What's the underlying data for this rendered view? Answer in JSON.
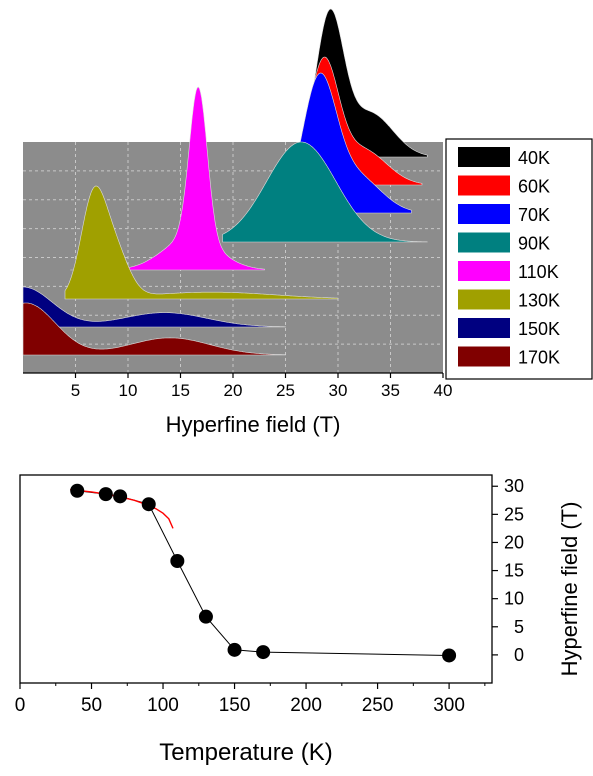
{
  "chart_data": [
    {
      "type": "area",
      "xlabel": "Hyperfine field (T)",
      "xlim": [
        0,
        40
      ],
      "xticks": [
        5,
        10,
        15,
        20,
        25,
        30,
        35,
        40
      ],
      "plot_background": "#8c8c8c",
      "grid": true,
      "legend": "right",
      "series": [
        {
          "name": "40K",
          "color": "#000000",
          "peaks": [
            {
              "center": 29.2,
              "width": 1.3,
              "height": 1.0
            },
            {
              "center": 33.0,
              "width": 2.2,
              "height": 0.32
            }
          ],
          "xmin": 27.0,
          "xmax": 38.5
        },
        {
          "name": "60K",
          "color": "#ff0000",
          "peaks": [
            {
              "center": 28.6,
              "width": 1.4,
              "height": 1.0
            },
            {
              "center": 32.3,
              "width": 2.3,
              "height": 0.3
            }
          ],
          "xmin": 26.3,
          "xmax": 38.0
        },
        {
          "name": "70K",
          "color": "#0000ff",
          "peaks": [
            {
              "center": 28.2,
              "width": 1.6,
              "height": 1.0
            },
            {
              "center": 31.8,
              "width": 2.3,
              "height": 0.28
            }
          ],
          "xmin": 25.5,
          "xmax": 37.0
        },
        {
          "name": "90K",
          "color": "#008080",
          "peaks": [
            {
              "center": 26.5,
              "width": 3.3,
              "height": 1.0
            }
          ],
          "xmin": 19.0,
          "xmax": 38.5
        },
        {
          "name": "110K",
          "color": "#ff00ff",
          "peaks": [
            {
              "center": 16.7,
              "width": 0.85,
              "height": 1.0
            },
            {
              "center": 16.0,
              "width": 2.6,
              "height": 0.22
            }
          ],
          "xmin": 4.5,
          "xmax": 23.0
        },
        {
          "name": "130K",
          "color": "#a0a000",
          "peaks": [
            {
              "center": 6.7,
              "width": 1.2,
              "height": 1.0
            },
            {
              "center": 8.8,
              "width": 1.3,
              "height": 0.45
            },
            {
              "center": 18.0,
              "width": 6.0,
              "height": 0.07
            }
          ],
          "xmin": 4.0,
          "xmax": 30.0
        },
        {
          "name": "150K",
          "color": "#000080",
          "peaks": [
            {
              "center": 0.0,
              "width": 2.8,
              "height": 1.0
            },
            {
              "center": 13.5,
              "width": 4.0,
              "height": 0.36
            }
          ],
          "xmin": 0.0,
          "xmax": 25.0
        },
        {
          "name": "170K",
          "color": "#800000",
          "peaks": [
            {
              "center": 0.3,
              "width": 2.8,
              "height": 1.0
            },
            {
              "center": 14.0,
              "width": 3.8,
              "height": 0.33
            }
          ],
          "xmin": 0.0,
          "xmax": 25.0
        }
      ]
    },
    {
      "type": "scatter",
      "xlabel": "Temperature (K)",
      "ylabel": "Hyperfine field (T)",
      "xlim": [
        0,
        330
      ],
      "ylim": [
        -5,
        32
      ],
      "xticks": [
        0,
        50,
        100,
        150,
        200,
        250,
        300
      ],
      "yticks": [
        0,
        5,
        10,
        15,
        20,
        25,
        30
      ],
      "points": [
        {
          "x": 40,
          "y": 29.2
        },
        {
          "x": 60,
          "y": 28.6
        },
        {
          "x": 70,
          "y": 28.2
        },
        {
          "x": 90,
          "y": 26.8
        },
        {
          "x": 110,
          "y": 16.7
        },
        {
          "x": 130,
          "y": 6.8
        },
        {
          "x": 150,
          "y": 0.9
        },
        {
          "x": 170,
          "y": 0.5
        },
        {
          "x": 300,
          "y": -0.1
        }
      ],
      "fit_line": {
        "color": "#ff0000",
        "x": [
          35,
          50,
          60,
          70,
          80,
          90,
          95,
          100,
          104,
          107
        ],
        "y": [
          29.4,
          29.0,
          28.6,
          28.1,
          27.5,
          26.6,
          26.0,
          25.2,
          24.2,
          22.5
        ]
      }
    }
  ]
}
